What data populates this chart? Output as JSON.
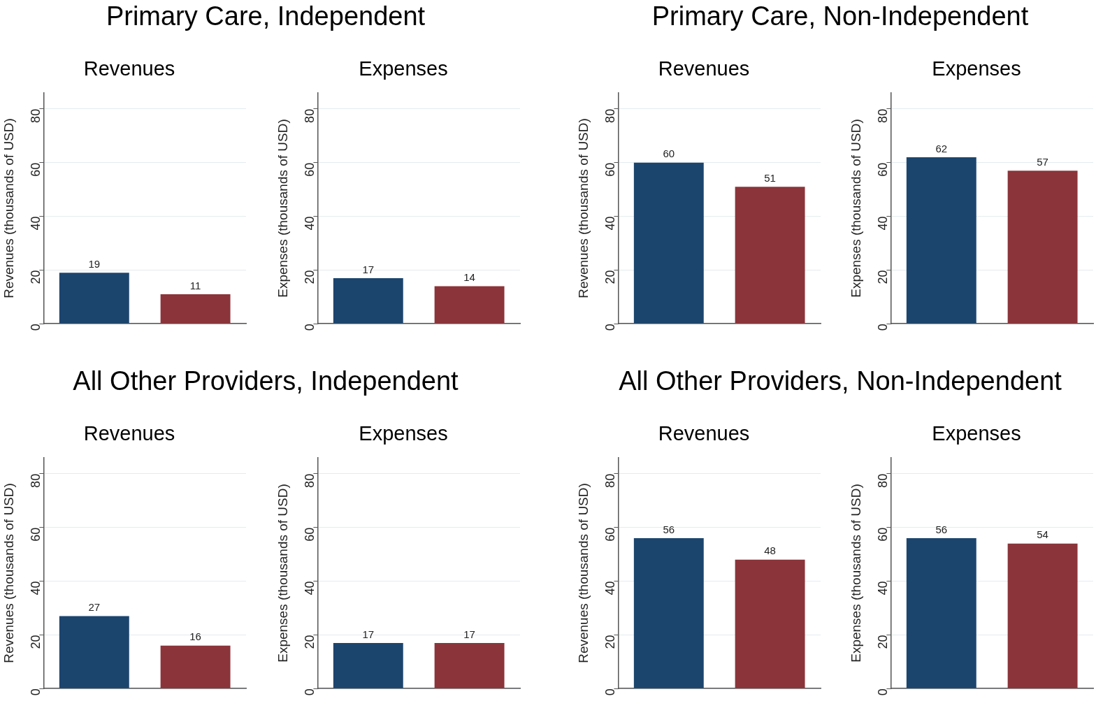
{
  "chart_data": [
    {
      "type": "bar",
      "title": "Primary Care, Independent",
      "subtitle": "Revenues",
      "ylabel": "Revenues (thousands of USD)",
      "categories": [
        null,
        null
      ],
      "values": [
        19,
        11
      ],
      "colors": [
        "#1c456e",
        "#8b343a"
      ],
      "ylim": [
        0,
        86
      ],
      "yticks": [
        0,
        20,
        40,
        60,
        80
      ],
      "grid": "y",
      "data_labels": true
    },
    {
      "type": "bar",
      "subtitle": "Expenses",
      "ylabel": "Expenses (thousands of USD)",
      "categories": [
        null,
        null
      ],
      "values": [
        17,
        14
      ],
      "colors": [
        "#1c456e",
        "#8b343a"
      ],
      "ylim": [
        0,
        86
      ],
      "yticks": [
        0,
        20,
        40,
        60,
        80
      ],
      "grid": "y",
      "data_labels": true
    },
    {
      "type": "bar",
      "title": "Primary Care, Non-Independent",
      "subtitle": "Revenues",
      "ylabel": "Revenues (thousands of USD)",
      "categories": [
        null,
        null
      ],
      "values": [
        60,
        51
      ],
      "colors": [
        "#1c456e",
        "#8b343a"
      ],
      "ylim": [
        0,
        86
      ],
      "yticks": [
        0,
        20,
        40,
        60,
        80
      ],
      "grid": "y",
      "data_labels": true
    },
    {
      "type": "bar",
      "subtitle": "Expenses",
      "ylabel": "Expenses (thousands of USD)",
      "categories": [
        null,
        null
      ],
      "values": [
        62,
        57
      ],
      "colors": [
        "#1c456e",
        "#8b343a"
      ],
      "ylim": [
        0,
        86
      ],
      "yticks": [
        0,
        20,
        40,
        60,
        80
      ],
      "grid": "y",
      "data_labels": true
    },
    {
      "type": "bar",
      "title": "All Other Providers, Independent",
      "subtitle": "Revenues",
      "ylabel": "Revenues (thousands of USD)",
      "categories": [
        null,
        null
      ],
      "values": [
        27,
        16
      ],
      "colors": [
        "#1c456e",
        "#8b343a"
      ],
      "ylim": [
        0,
        86
      ],
      "yticks": [
        0,
        20,
        40,
        60,
        80
      ],
      "grid": "y",
      "data_labels": true
    },
    {
      "type": "bar",
      "subtitle": "Expenses",
      "ylabel": "Expenses (thousands of USD)",
      "categories": [
        null,
        null
      ],
      "values": [
        17,
        17
      ],
      "colors": [
        "#1c456e",
        "#8b343a"
      ],
      "ylim": [
        0,
        86
      ],
      "yticks": [
        0,
        20,
        40,
        60,
        80
      ],
      "grid": "y",
      "data_labels": true
    },
    {
      "type": "bar",
      "title": "All Other Providers, Non-Independent",
      "subtitle": "Revenues",
      "ylabel": "Revenues (thousands of USD)",
      "categories": [
        null,
        null
      ],
      "values": [
        56,
        48
      ],
      "colors": [
        "#1c456e",
        "#8b343a"
      ],
      "ylim": [
        0,
        86
      ],
      "yticks": [
        0,
        20,
        40,
        60,
        80
      ],
      "grid": "y",
      "data_labels": true
    },
    {
      "type": "bar",
      "subtitle": "Expenses",
      "ylabel": "Expenses (thousands of USD)",
      "categories": [
        null,
        null
      ],
      "values": [
        56,
        54
      ],
      "colors": [
        "#1c456e",
        "#8b343a"
      ],
      "ylim": [
        0,
        86
      ],
      "yticks": [
        0,
        20,
        40,
        60,
        80
      ],
      "grid": "y",
      "data_labels": true
    }
  ]
}
